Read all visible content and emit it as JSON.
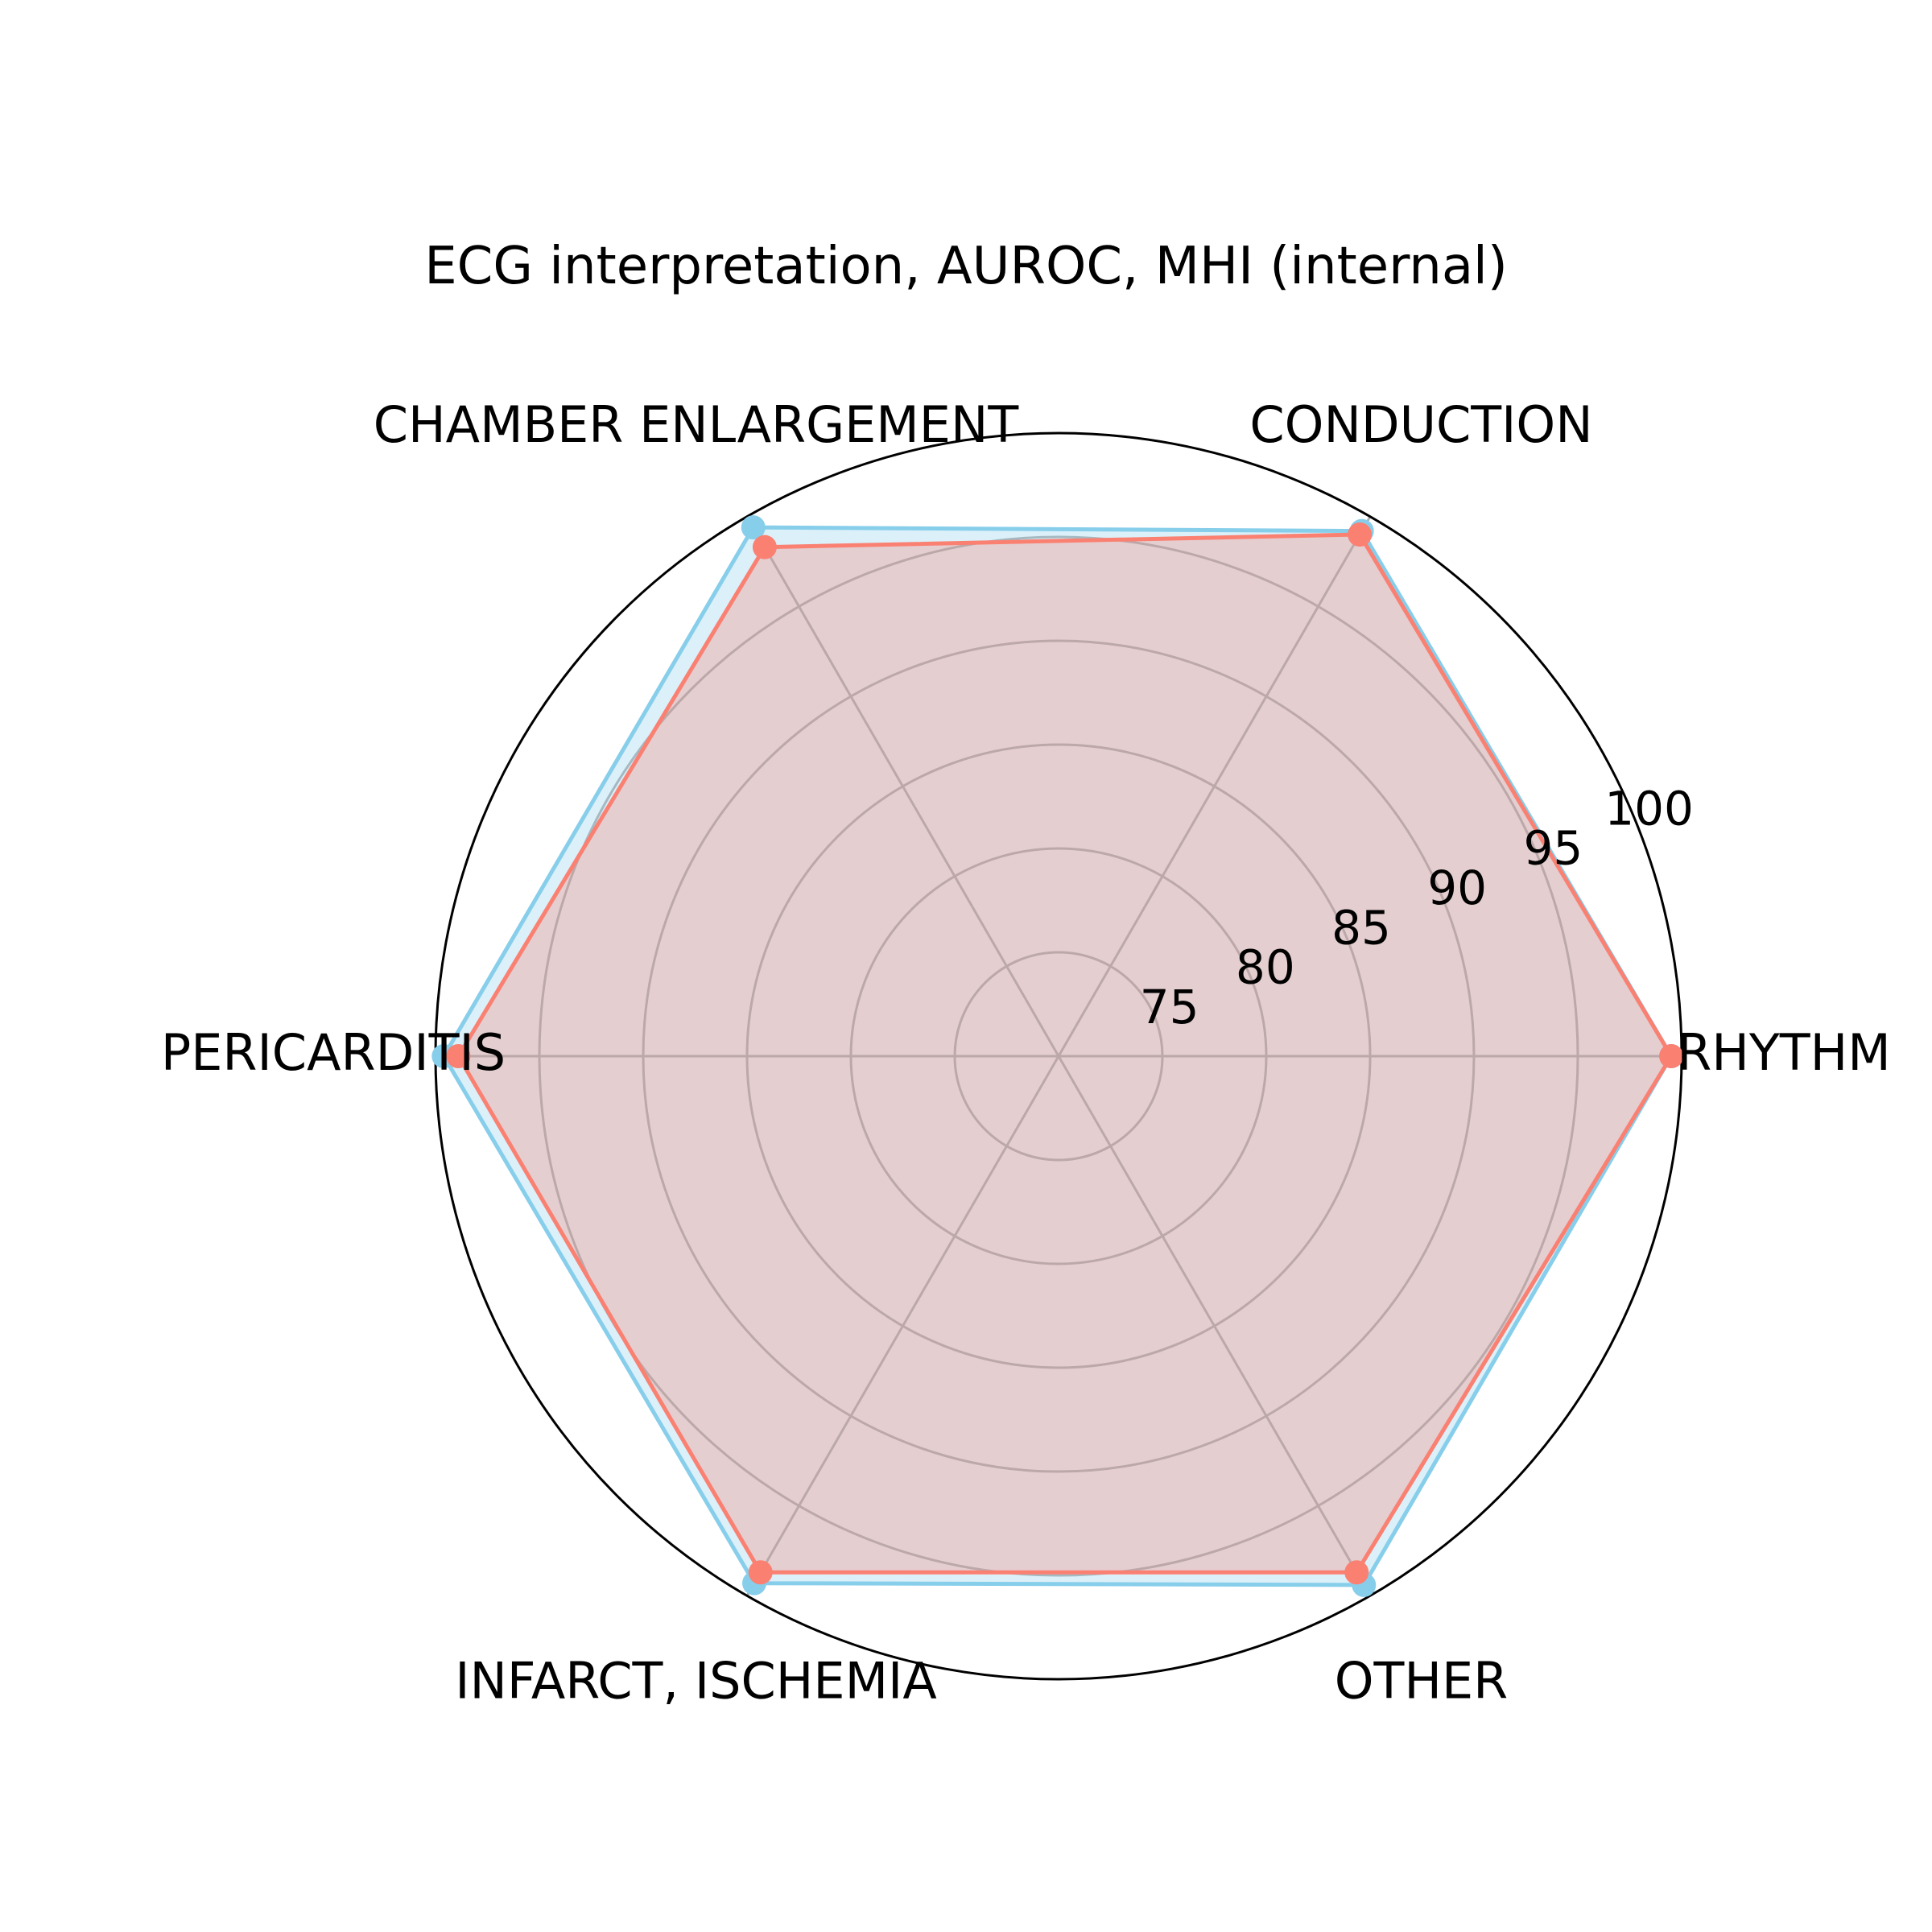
{
  "chart_data": {
    "type": "radar",
    "title": "ECG interpretation, AUROC,  MHI (internal)",
    "categories": [
      "RHYTHM",
      "CONDUCTION",
      "CHAMBER ENLARGEMENT",
      "PERICARDITIS",
      "INFARCT, ISCHEMIA",
      "OTHER"
    ],
    "rlim": [
      70,
      100
    ],
    "rticks": [
      75,
      80,
      85,
      90,
      95,
      100
    ],
    "rtick_labels": [
      "75",
      "80",
      "85",
      "90",
      "95",
      "100"
    ],
    "grid": true,
    "series": [
      {
        "color": "#87ceeb",
        "fill_opacity": 0.3,
        "values": [
          99.5,
          99.2,
          99.4,
          99.6,
          99.3,
          99.4
        ]
      },
      {
        "color": "#fa8072",
        "fill_opacity": 0.3,
        "values": [
          99.5,
          99.0,
          98.3,
          98.9,
          98.7,
          98.7
        ]
      }
    ]
  }
}
